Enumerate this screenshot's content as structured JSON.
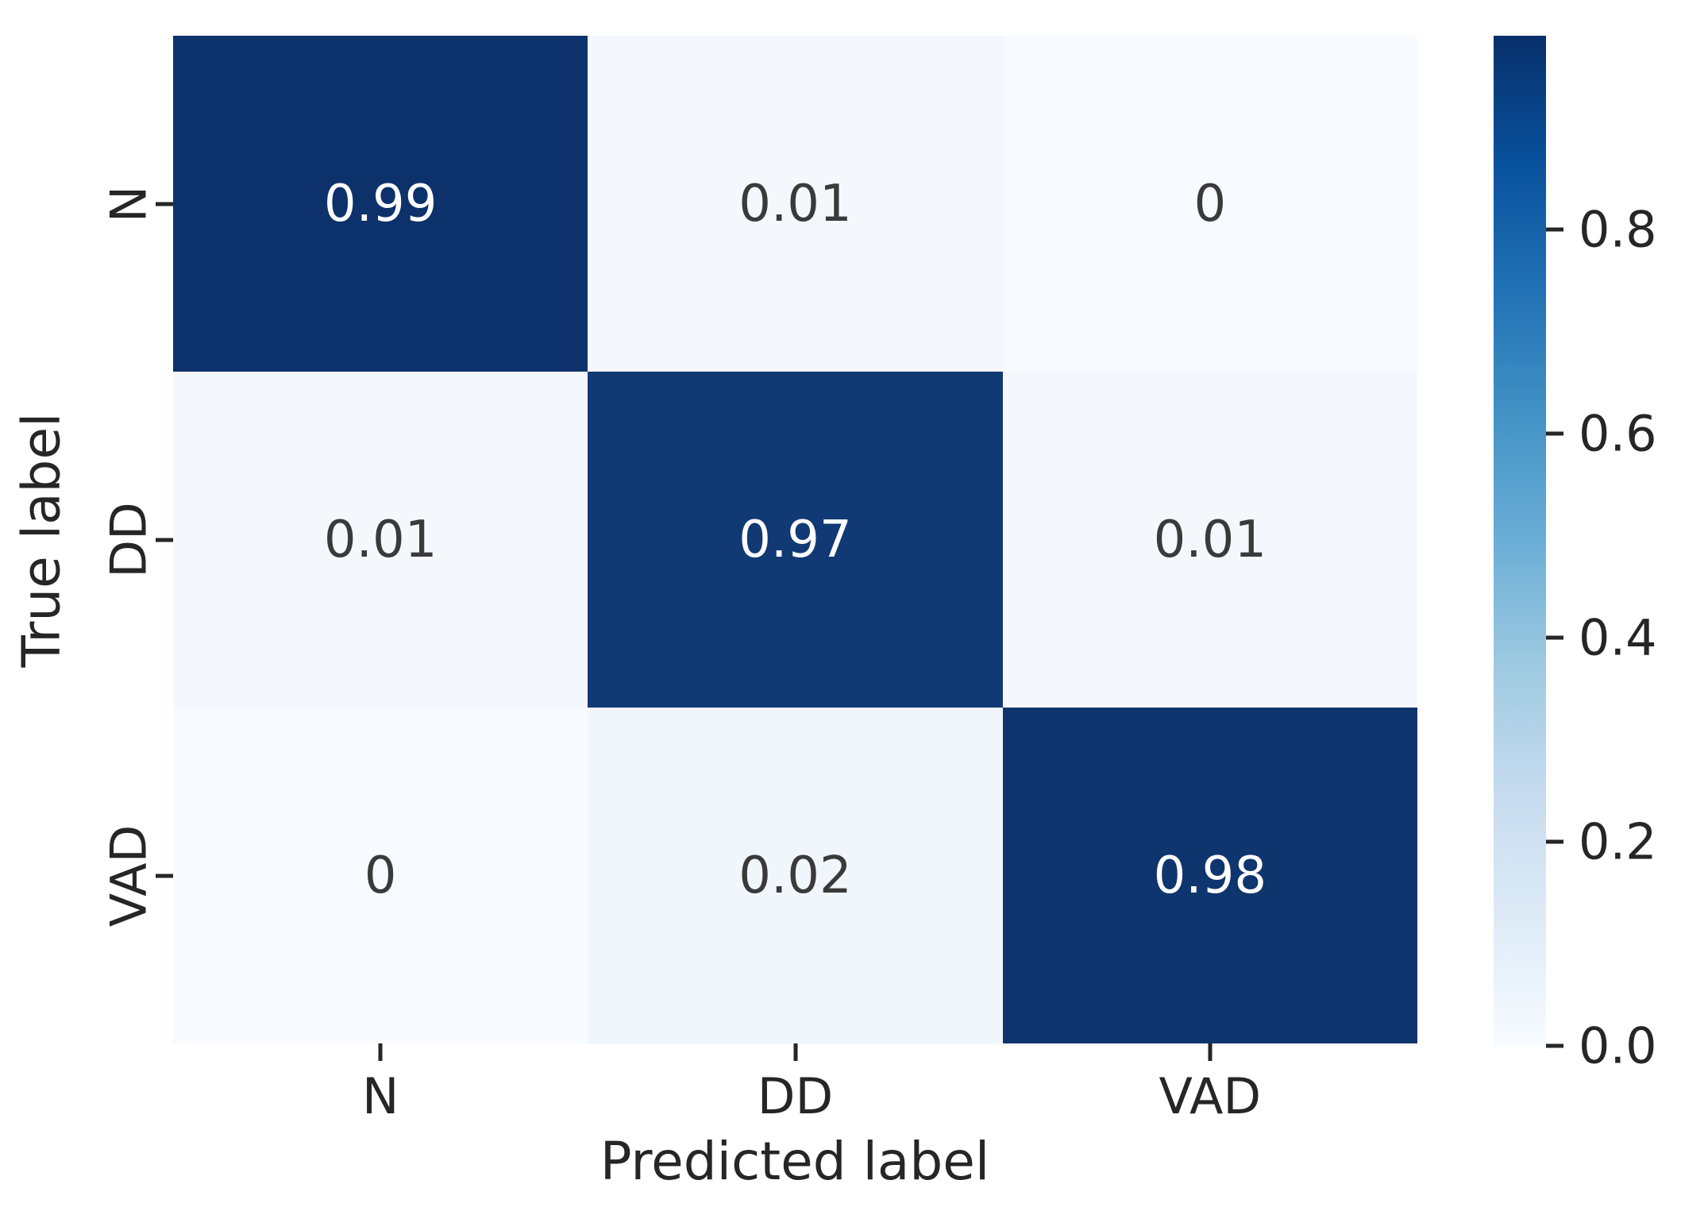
{
  "figure": {
    "background": "#ffffff"
  },
  "chart_data": {
    "type": "heatmap",
    "title": "",
    "xlabel": "Predicted label",
    "ylabel": "True label",
    "x_categories": [
      "N",
      "DD",
      "VAD"
    ],
    "y_categories": [
      "N",
      "DD",
      "VAD"
    ],
    "matrix": [
      [
        0.99,
        0.01,
        0
      ],
      [
        0.01,
        0.97,
        0.01
      ],
      [
        0,
        0.02,
        0.98
      ]
    ],
    "cell_labels": [
      [
        "0.99",
        "0.01",
        "0"
      ],
      [
        "0.01",
        "0.97",
        "0.01"
      ],
      [
        "0",
        "0.02",
        "0.98"
      ]
    ],
    "colormap": "Blues",
    "vmin": 0,
    "vmax": 0.99,
    "grid": false,
    "legend_position": "right-colorbar",
    "colorbar_ticks": [
      {
        "label": "0.8",
        "value": 0.8
      },
      {
        "label": "0.6",
        "value": 0.6
      },
      {
        "label": "0.4",
        "value": 0.4
      },
      {
        "label": "0.2",
        "value": 0.2
      },
      {
        "label": "0.0",
        "value": 0.0
      }
    ]
  },
  "colors": {
    "cell_colors": [
      [
        "#0d316a",
        "#f4f8fd",
        "#f7fbff"
      ],
      [
        "#f4f8fd",
        "#113a74",
        "#f4f8fd"
      ],
      [
        "#f7fbff",
        "#f1f6fc",
        "#0f356e"
      ]
    ],
    "annot_text_dark_bg": "#ffffff",
    "annot_text_light_bg": "#3a3a3a",
    "tick_label": "#262626",
    "colorbar_gradient": [
      "#08306b",
      "#08519c",
      "#2171b5",
      "#4292c6",
      "#6baed6",
      "#9ecae1",
      "#c6dbef",
      "#deebf7",
      "#f7fbff"
    ]
  }
}
